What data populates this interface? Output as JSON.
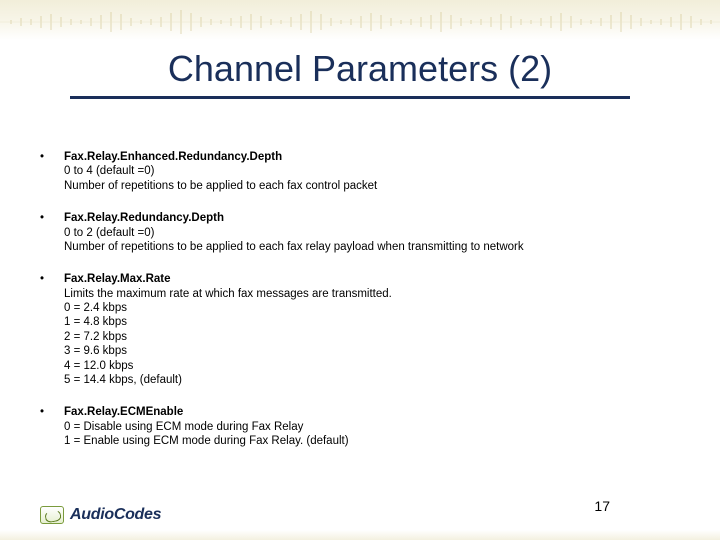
{
  "colors": {
    "title": "#1a2f5a",
    "underline": "#1a2f5a",
    "text": "#000000",
    "band_start": "#e8e2c0",
    "band_end": "#ffffff",
    "waveform": "#c8b978",
    "logo_green": "#5a7a1e"
  },
  "title": "Channel Parameters (2)",
  "items": [
    {
      "name": "Fax.Relay.Enhanced.Redundancy.Depth",
      "lines": [
        "0 to 4 (default =0)",
        "Number of repetitions to be applied to each fax control packet"
      ]
    },
    {
      "name": "Fax.Relay.Redundancy.Depth",
      "lines": [
        "0 to 2 (default =0)",
        "Number of repetitions to be applied to each fax relay payload when transmitting to network"
      ]
    },
    {
      "name": "Fax.Relay.Max.Rate",
      "lines": [
        "Limits the maximum rate at which fax messages are transmitted.",
        "0 =  2.4 kbps",
        "1 =  4.8 kbps",
        "2 =  7.2 kbps",
        "3 =  9.6 kbps",
        "4 = 12.0 kbps",
        "5 = 14.4 kbps, (default)"
      ]
    },
    {
      "name": "Fax.Relay.ECMEnable",
      "lines": [
        "0 = Disable using ECM mode during Fax Relay",
        "1 = Enable using ECM mode during Fax Relay. (default)"
      ]
    }
  ],
  "page_number": "17",
  "logo": {
    "text_prefix": "Audio",
    "text_suffix": "Codes"
  }
}
